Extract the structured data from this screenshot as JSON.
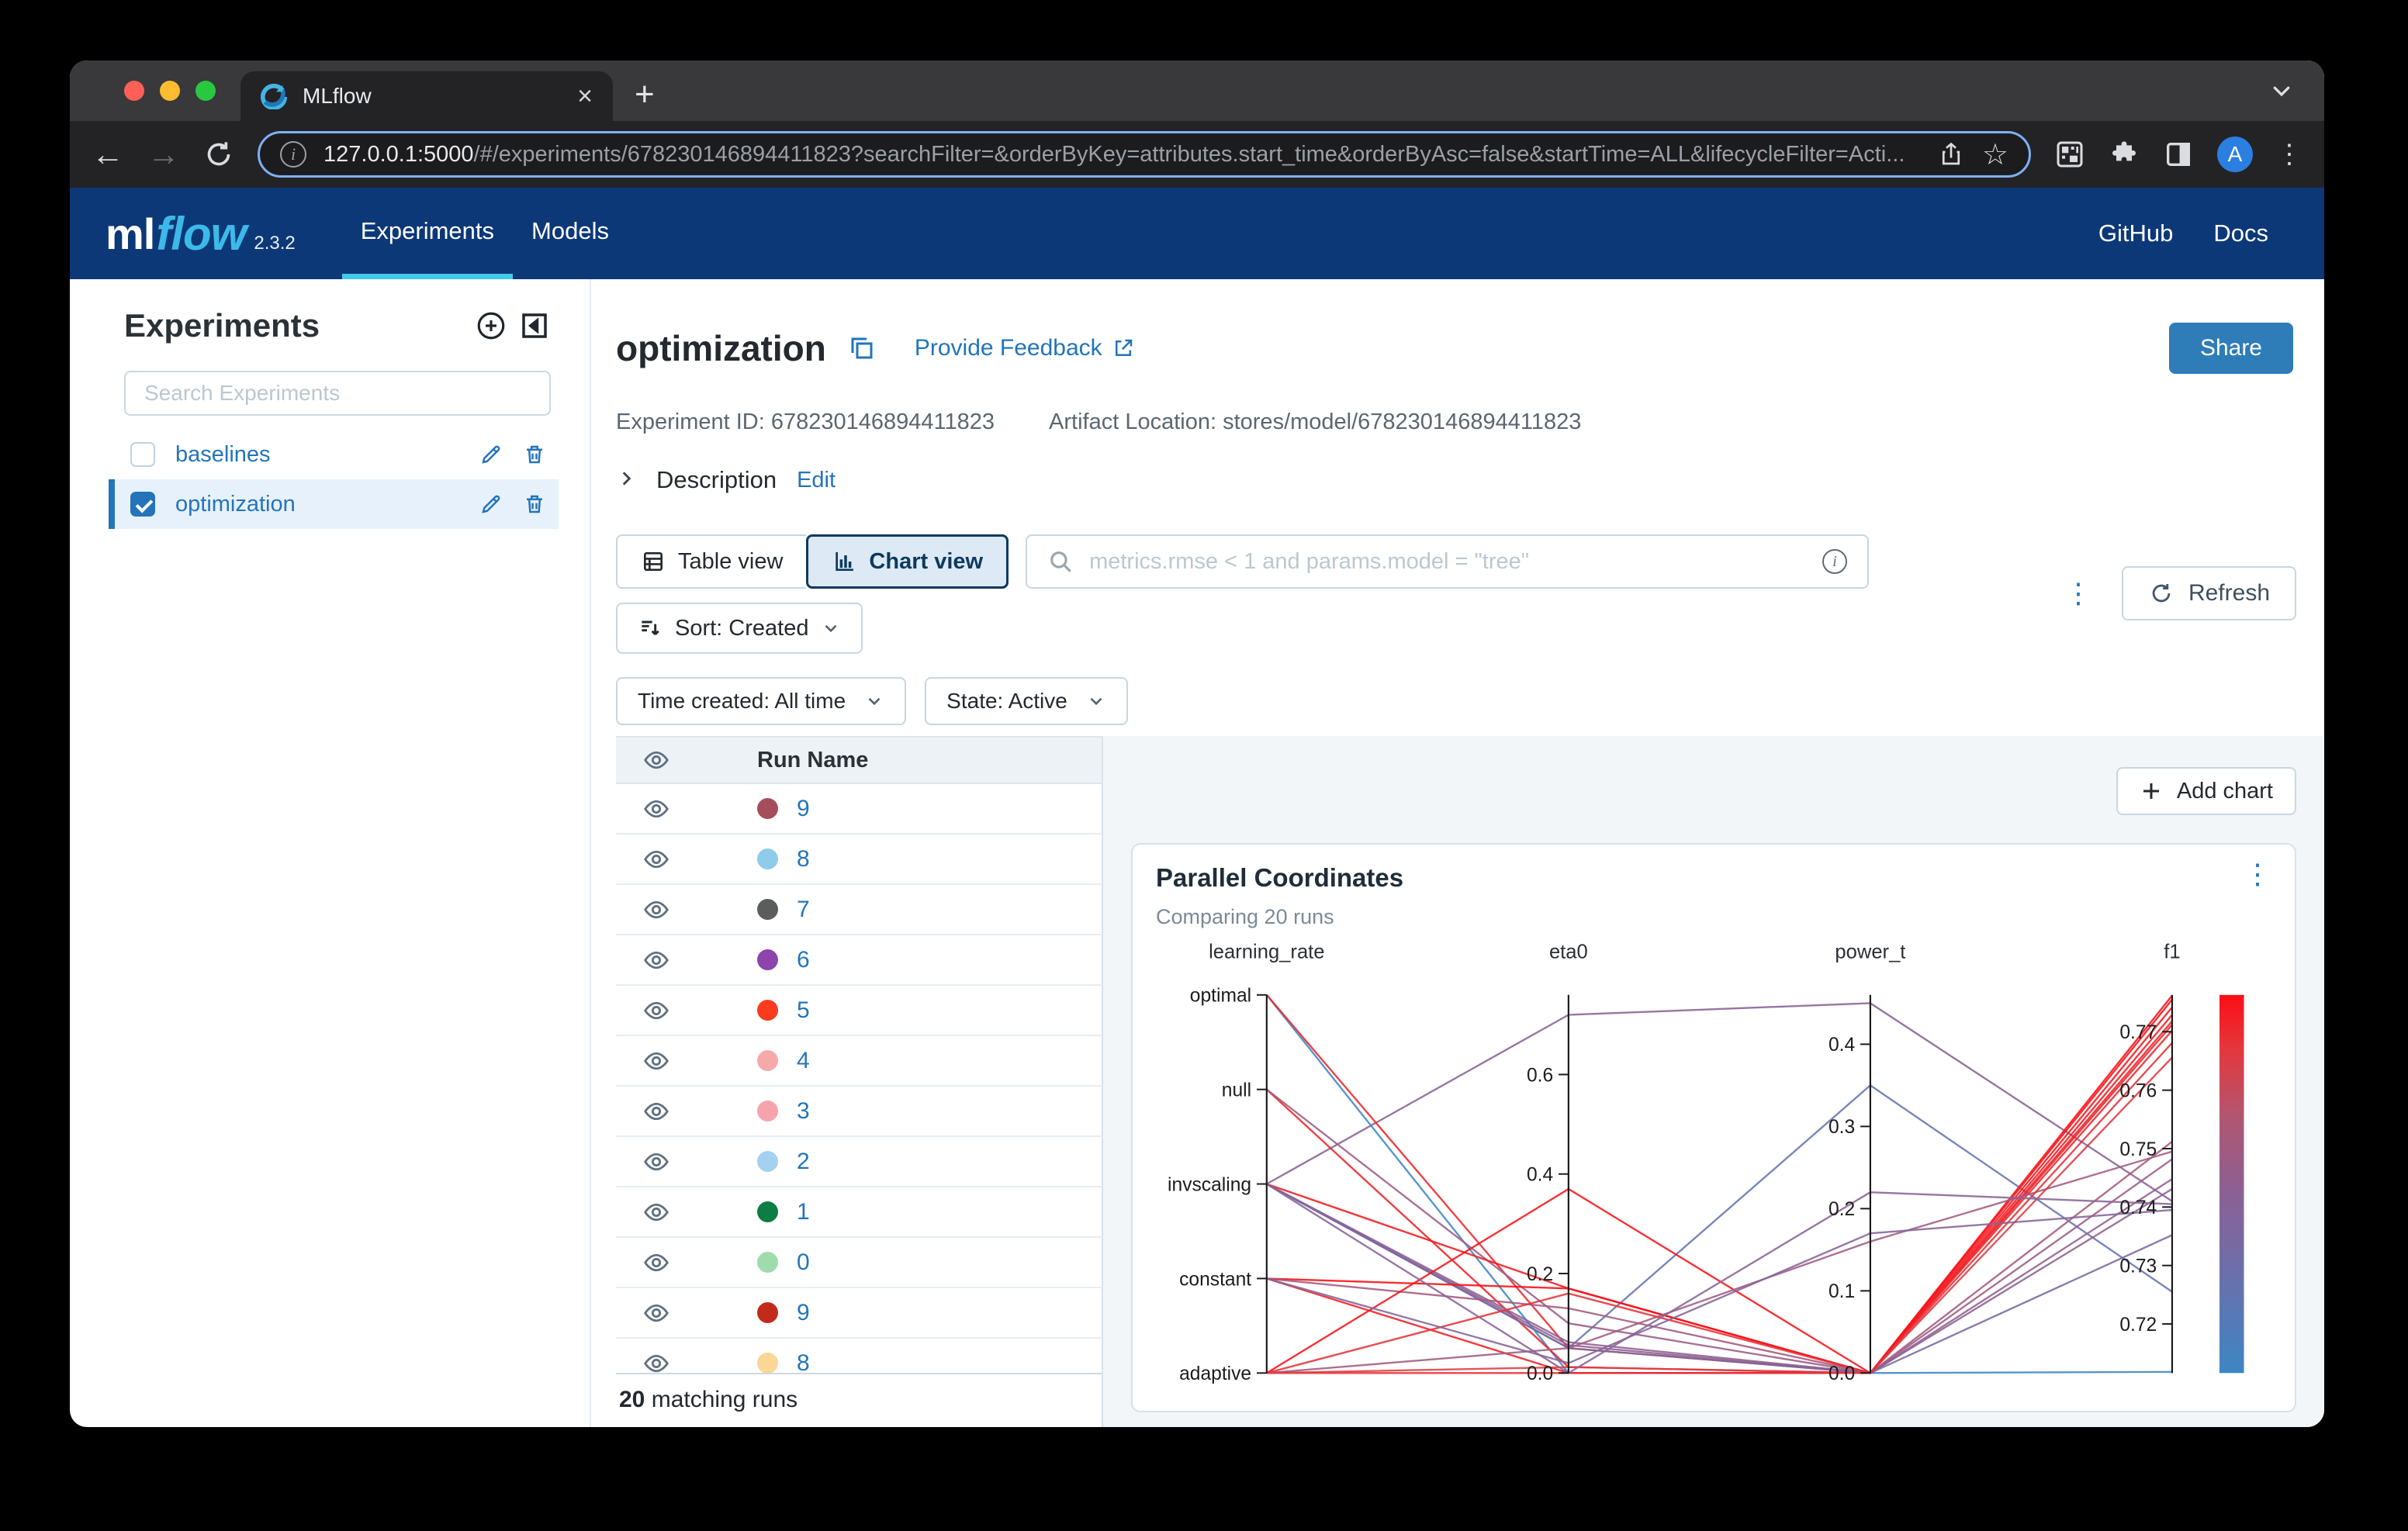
{
  "browser": {
    "tab_title": "MLflow",
    "url_host": "127.0.0.1:5000",
    "url_rest": "/#/experiments/678230146894411823?searchFilter=&orderByKey=attributes.start_time&orderByAsc=false&startTime=ALL&lifecycleFilter=Acti...",
    "avatar_letter": "A"
  },
  "appbar": {
    "logo_ml": "ml",
    "logo_flow": "flow",
    "version": "2.3.2",
    "nav": [
      {
        "label": "Experiments",
        "active": true
      },
      {
        "label": "Models",
        "active": false
      }
    ],
    "right_links": [
      "GitHub",
      "Docs"
    ]
  },
  "sidebar": {
    "title": "Experiments",
    "search_placeholder": "Search Experiments",
    "items": [
      {
        "label": "baselines",
        "selected": false
      },
      {
        "label": "optimization",
        "selected": true
      }
    ]
  },
  "main": {
    "title": "optimization",
    "feedback_link": "Provide Feedback",
    "experiment_id_label": "Experiment ID:",
    "experiment_id": "678230146894411823",
    "artifact_label": "Artifact Location:",
    "artifact_location": "stores/model/678230146894411823",
    "description_label": "Description",
    "description_edit": "Edit",
    "share_button": "Share",
    "table_view": "Table view",
    "chart_view": "Chart view",
    "search_placeholder": "metrics.rmse < 1 and params.model = \"tree\"",
    "sort_label": "Sort: Created",
    "refresh_label": "Refresh",
    "filters": [
      "Time created: All time",
      "State: Active"
    ],
    "add_chart": "Add chart",
    "run_table": {
      "header": "Run Name",
      "rows": [
        {
          "name": "9",
          "color": "#a64d5c"
        },
        {
          "name": "8",
          "color": "#8fccea"
        },
        {
          "name": "7",
          "color": "#5a5c5e"
        },
        {
          "name": "6",
          "color": "#8d44ad"
        },
        {
          "name": "5",
          "color": "#fa3b1d"
        },
        {
          "name": "4",
          "color": "#f6a9a9"
        },
        {
          "name": "3",
          "color": "#f6a4ab"
        },
        {
          "name": "2",
          "color": "#a3d1ef"
        },
        {
          "name": "1",
          "color": "#0e7c45"
        },
        {
          "name": "0",
          "color": "#9edcab"
        },
        {
          "name": "9",
          "color": "#c42a1a"
        },
        {
          "name": "8",
          "color": "#fbd795"
        }
      ],
      "footer_count": "20",
      "footer_text": " matching runs"
    }
  },
  "chart_data": {
    "type": "parallel-coordinates",
    "title": "Parallel Coordinates",
    "subtitle": "Comparing 20 runs",
    "legend_position": "right-colorbar",
    "grid": false,
    "axes": [
      {
        "name": "learning_rate",
        "type": "categorical",
        "categories": [
          "optimal",
          "null",
          "invscaling",
          "constant",
          "adaptive"
        ]
      },
      {
        "name": "eta0",
        "type": "numeric",
        "min": 0,
        "max": 0.76,
        "ticks": [
          {
            "v": 0,
            "label": "0.0"
          },
          {
            "v": 0.2,
            "label": "0.2"
          },
          {
            "v": 0.4,
            "label": "0.4"
          },
          {
            "v": 0.6,
            "label": "0.6"
          }
        ]
      },
      {
        "name": "power_t",
        "type": "numeric",
        "min": 0,
        "max": 0.46,
        "ticks": [
          {
            "v": 0,
            "label": "0.0"
          },
          {
            "v": 0.1,
            "label": "0.1"
          },
          {
            "v": 0.2,
            "label": "0.2"
          },
          {
            "v": 0.3,
            "label": "0.3"
          },
          {
            "v": 0.4,
            "label": "0.4"
          }
        ]
      },
      {
        "name": "f1",
        "type": "numeric",
        "min": 0.7116,
        "max": 0.7763,
        "ticks": [
          {
            "v": 0.72,
            "label": "0.72"
          },
          {
            "v": 0.73,
            "label": "0.73"
          },
          {
            "v": 0.74,
            "label": "0.74"
          },
          {
            "v": 0.75,
            "label": "0.75"
          },
          {
            "v": 0.76,
            "label": "0.76"
          },
          {
            "v": 0.77,
            "label": "0.77"
          }
        ]
      }
    ],
    "runs": [
      {
        "learning_rate": "invscaling",
        "eta0": 0.72,
        "power_t": 0.45,
        "f1": 0.741
      },
      {
        "learning_rate": "invscaling",
        "eta0": 0.05,
        "power_t": 0.35,
        "f1": 0.7255
      },
      {
        "learning_rate": "optimal",
        "eta0": 0.0,
        "power_t": 0.0,
        "f1": 0.7118
      },
      {
        "learning_rate": "optimal",
        "eta0": 0.05,
        "power_t": 0.0,
        "f1": 0.7712
      },
      {
        "learning_rate": "null",
        "eta0": 0.012,
        "power_t": 0.0,
        "f1": 0.7718
      },
      {
        "learning_rate": "null",
        "eta0": 0.1,
        "power_t": 0.0,
        "f1": 0.7482
      },
      {
        "learning_rate": "invscaling",
        "eta0": 0.17,
        "power_t": 0.0,
        "f1": 0.7742
      },
      {
        "learning_rate": "invscaling",
        "eta0": 0.062,
        "power_t": 0.0,
        "f1": 0.7448
      },
      {
        "learning_rate": "invscaling",
        "eta0": 0.056,
        "power_t": 0.0,
        "f1": 0.7431
      },
      {
        "learning_rate": "invscaling",
        "eta0": 0.05,
        "power_t": 0.0,
        "f1": 0.7352
      },
      {
        "learning_rate": "constant",
        "eta0": 0.17,
        "power_t": 0.0,
        "f1": 0.7762
      },
      {
        "learning_rate": "constant",
        "eta0": 0.13,
        "power_t": 0.0,
        "f1": 0.7512
      },
      {
        "learning_rate": "constant",
        "eta0": 0.0,
        "power_t": 0.0,
        "f1": 0.7729
      },
      {
        "learning_rate": "adaptive",
        "eta0": 0.37,
        "power_t": 0.0,
        "f1": 0.7755
      },
      {
        "learning_rate": "adaptive",
        "eta0": 0.0,
        "power_t": 0.0,
        "f1": 0.7702
      },
      {
        "learning_rate": "adaptive",
        "eta0": 0.05,
        "power_t": 0.16,
        "f1": 0.7495
      },
      {
        "learning_rate": "adaptive",
        "eta0": 0.012,
        "power_t": 0.0,
        "f1": 0.7656
      },
      {
        "learning_rate": "adaptive",
        "eta0": 0.16,
        "power_t": 0.0,
        "f1": 0.7681
      },
      {
        "learning_rate": "invscaling",
        "eta0": 0.0,
        "power_t": 0.22,
        "f1": 0.7405
      },
      {
        "learning_rate": "constant",
        "eta0": 0.02,
        "power_t": 0.17,
        "f1": 0.7395
      }
    ],
    "colorscale": [
      [
        0,
        "#3d86c3"
      ],
      [
        0.28,
        "#6e6eaa"
      ],
      [
        0.5,
        "#8f5f90"
      ],
      [
        0.68,
        "#b25670"
      ],
      [
        0.85,
        "#e2393f"
      ],
      [
        1,
        "#fb0f15"
      ]
    ]
  }
}
